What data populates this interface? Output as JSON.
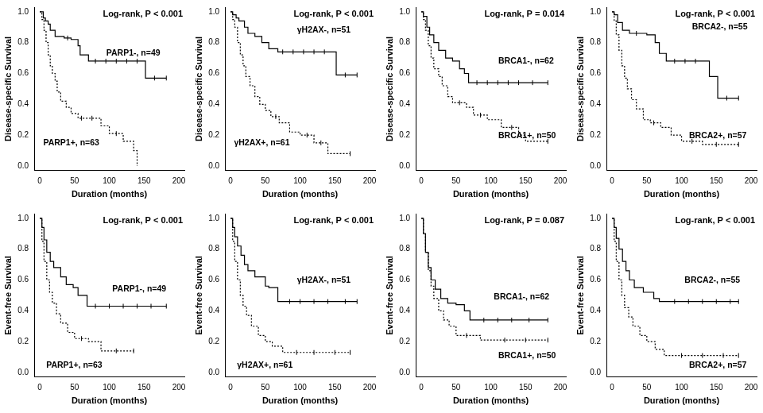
{
  "chart_data": [
    {
      "type": "line",
      "y_label": "Disease-specific Survival",
      "x_label": "Duration (months)",
      "annotations": [
        "Log-rank, P < 0.001"
      ],
      "xlim": [
        -8,
        208
      ],
      "xticks": [
        0,
        50,
        100,
        150,
        200
      ],
      "ylim": [
        -0.03,
        1.03
      ],
      "yticks": [
        {
          "value": 0,
          "label": "0.0"
        },
        0.2,
        0.4,
        0.6,
        0.8,
        {
          "value": 1,
          "label": "1.0"
        }
      ],
      "grid": false,
      "series": [
        {
          "name": "PARP1-, n=49",
          "color": "#000000",
          "line_style": "solid",
          "marker": "tick",
          "x": [
            0,
            3,
            5,
            8,
            12,
            15,
            22,
            35,
            45,
            55,
            58,
            70,
            152,
            182
          ],
          "values": [
            1,
            1,
            0.96,
            0.94,
            0.92,
            0.88,
            0.84,
            0.83,
            0.82,
            0.78,
            0.72,
            0.68,
            0.57,
            0.57
          ],
          "censored": [
            40,
            80,
            95,
            110,
            125,
            140,
            165,
            182
          ]
        },
        {
          "name": "PARP1+, n=63",
          "color": "#000000",
          "line_style": "dotted",
          "marker": "tick",
          "x": [
            0,
            3,
            6,
            9,
            12,
            15,
            18,
            22,
            25,
            30,
            38,
            45,
            55,
            88,
            100,
            120,
            135,
            140
          ],
          "values": [
            1,
            0.95,
            0.88,
            0.8,
            0.72,
            0.65,
            0.6,
            0.55,
            0.48,
            0.42,
            0.38,
            0.34,
            0.31,
            0.26,
            0.21,
            0.16,
            0.1,
            0
          ],
          "censored": [
            60,
            75,
            110
          ]
        }
      ]
    },
    {
      "type": "line",
      "y_label": "Disease-specific Survival",
      "x_label": "Duration (months)",
      "annotations": [
        "Log-rank, P < 0.001"
      ],
      "xlim": [
        -8,
        208
      ],
      "xticks": [
        0,
        50,
        100,
        150,
        200
      ],
      "ylim": [
        -0.03,
        1.03
      ],
      "yticks": [
        {
          "value": 0,
          "label": "0.0"
        },
        0.2,
        0.4,
        0.6,
        0.8,
        {
          "value": 1,
          "label": "1.0"
        }
      ],
      "grid": false,
      "series": [
        {
          "name": "γH2AX-, n=51",
          "color": "#000000",
          "line_style": "solid",
          "marker": "tick",
          "x": [
            0,
            3,
            8,
            12,
            20,
            25,
            35,
            45,
            55,
            68,
            152,
            182
          ],
          "values": [
            1,
            0.98,
            0.96,
            0.94,
            0.9,
            0.86,
            0.84,
            0.8,
            0.76,
            0.74,
            0.59,
            0.59
          ],
          "censored": [
            75,
            90,
            105,
            120,
            135,
            165,
            182
          ]
        },
        {
          "name": "γH2AX+, n=61",
          "color": "#000000",
          "line_style": "dotted",
          "marker": "tick",
          "x": [
            0,
            3,
            6,
            10,
            14,
            18,
            22,
            28,
            35,
            42,
            50,
            58,
            70,
            85,
            100,
            120,
            140,
            172
          ],
          "values": [
            1,
            0.95,
            0.9,
            0.8,
            0.72,
            0.65,
            0.58,
            0.52,
            0.45,
            0.4,
            0.36,
            0.32,
            0.28,
            0.22,
            0.2,
            0.15,
            0.08,
            0.08
          ],
          "censored": [
            65,
            110,
            130,
            172
          ]
        }
      ]
    },
    {
      "type": "line",
      "y_label": "Disease-specific Survival",
      "x_label": "Duration (months)",
      "annotations": [
        "Log-rank, P = 0.014"
      ],
      "xlim": [
        -8,
        208
      ],
      "xticks": [
        0,
        50,
        100,
        150,
        200
      ],
      "ylim": [
        -0.03,
        1.03
      ],
      "yticks": [
        {
          "value": 0,
          "label": "0.0"
        },
        0.2,
        0.4,
        0.6,
        0.8,
        {
          "value": 1,
          "label": "1.0"
        }
      ],
      "grid": false,
      "series": [
        {
          "name": "BRCA1-, n=62",
          "color": "#000000",
          "line_style": "solid",
          "marker": "tick",
          "x": [
            0,
            3,
            8,
            12,
            18,
            25,
            35,
            45,
            55,
            62,
            68,
            182
          ],
          "values": [
            1,
            0.97,
            0.9,
            0.85,
            0.8,
            0.75,
            0.7,
            0.68,
            0.63,
            0.6,
            0.54,
            0.54
          ],
          "censored": [
            80,
            95,
            110,
            125,
            140,
            160,
            182
          ]
        },
        {
          "name": "BRCA1+, n=50",
          "color": "#000000",
          "line_style": "dotted",
          "marker": "tick",
          "x": [
            0,
            3,
            6,
            10,
            14,
            18,
            25,
            30,
            38,
            45,
            65,
            75,
            95,
            115,
            140,
            150,
            182
          ],
          "values": [
            1,
            0.95,
            0.88,
            0.78,
            0.7,
            0.63,
            0.58,
            0.52,
            0.45,
            0.41,
            0.38,
            0.33,
            0.3,
            0.25,
            0.2,
            0.16,
            0.16
          ],
          "censored": [
            55,
            85,
            130,
            182
          ]
        }
      ]
    },
    {
      "type": "line",
      "y_label": "Disease-specific Survival",
      "x_label": "Duration (months)",
      "annotations": [
        "Log-rank, P < 0.001"
      ],
      "xlim": [
        -8,
        208
      ],
      "xticks": [
        0,
        50,
        100,
        150,
        200
      ],
      "ylim": [
        -0.03,
        1.03
      ],
      "yticks": [
        {
          "value": 0,
          "label": "0.0"
        },
        0.2,
        0.4,
        0.6,
        0.8,
        {
          "value": 1,
          "label": "1.0"
        }
      ],
      "grid": false,
      "series": [
        {
          "name": "BRCA2-, n=55",
          "color": "#000000",
          "line_style": "solid",
          "marker": "tick",
          "x": [
            0,
            3,
            8,
            15,
            25,
            50,
            62,
            68,
            78,
            140,
            152,
            182
          ],
          "values": [
            1,
            0.98,
            0.93,
            0.88,
            0.86,
            0.85,
            0.8,
            0.73,
            0.68,
            0.58,
            0.44,
            0.44
          ],
          "censored": [
            35,
            90,
            105,
            120,
            165,
            182
          ]
        },
        {
          "name": "BRCA2+, n=57",
          "color": "#000000",
          "line_style": "dotted",
          "marker": "tick",
          "x": [
            0,
            3,
            6,
            10,
            14,
            18,
            22,
            28,
            35,
            45,
            55,
            70,
            85,
            100,
            130,
            182
          ],
          "values": [
            1,
            0.94,
            0.85,
            0.75,
            0.65,
            0.57,
            0.5,
            0.43,
            0.37,
            0.3,
            0.28,
            0.25,
            0.2,
            0.16,
            0.14,
            0.14
          ],
          "censored": [
            60,
            115,
            150,
            182
          ]
        }
      ]
    },
    {
      "type": "line",
      "y_label": "Event-free Survival",
      "x_label": "Duration (months)",
      "annotations": [
        "Log-rank, P < 0.001"
      ],
      "xlim": [
        -8,
        208
      ],
      "xticks": [
        0,
        50,
        100,
        150,
        200
      ],
      "ylim": [
        -0.03,
        1.03
      ],
      "yticks": [
        {
          "value": 0,
          "label": "0.0"
        },
        0.2,
        0.4,
        0.6,
        0.8,
        {
          "value": 1,
          "label": "1.0"
        }
      ],
      "grid": false,
      "series": [
        {
          "name": "PARP1-, n=49",
          "color": "#000000",
          "line_style": "solid",
          "marker": "tick",
          "x": [
            0,
            3,
            6,
            10,
            15,
            20,
            30,
            38,
            48,
            55,
            68,
            182
          ],
          "values": [
            1,
            0.94,
            0.86,
            0.78,
            0.72,
            0.68,
            0.62,
            0.57,
            0.55,
            0.5,
            0.43,
            0.43
          ],
          "censored": [
            80,
            100,
            120,
            140,
            160,
            182
          ]
        },
        {
          "name": "PARP1+, n=63",
          "color": "#000000",
          "line_style": "dotted",
          "marker": "tick",
          "x": [
            0,
            3,
            6,
            10,
            14,
            18,
            24,
            30,
            40,
            50,
            70,
            88,
            135
          ],
          "values": [
            1,
            0.85,
            0.72,
            0.6,
            0.52,
            0.45,
            0.38,
            0.32,
            0.26,
            0.22,
            0.2,
            0.14,
            0.14
          ],
          "censored": [
            60,
            110,
            135
          ]
        }
      ]
    },
    {
      "type": "line",
      "y_label": "Event-free Survival",
      "x_label": "Duration (months)",
      "annotations": [
        "Log-rank, P < 0.001"
      ],
      "xlim": [
        -8,
        208
      ],
      "xticks": [
        0,
        50,
        100,
        150,
        200
      ],
      "ylim": [
        -0.03,
        1.03
      ],
      "yticks": [
        {
          "value": 0,
          "label": "0.0"
        },
        0.2,
        0.4,
        0.6,
        0.8,
        {
          "value": 1,
          "label": "1.0"
        }
      ],
      "grid": false,
      "series": [
        {
          "name": "γH2AX-, n=51",
          "color": "#000000",
          "line_style": "solid",
          "marker": "tick",
          "x": [
            0,
            3,
            6,
            10,
            15,
            20,
            25,
            35,
            50,
            55,
            68,
            182
          ],
          "values": [
            1,
            0.94,
            0.88,
            0.82,
            0.76,
            0.7,
            0.66,
            0.62,
            0.56,
            0.55,
            0.46,
            0.46
          ],
          "censored": [
            85,
            100,
            120,
            140,
            165,
            182
          ]
        },
        {
          "name": "γH2AX+, n=61",
          "color": "#000000",
          "line_style": "dotted",
          "marker": "tick",
          "x": [
            0,
            3,
            6,
            10,
            14,
            18,
            23,
            30,
            40,
            50,
            60,
            75,
            172
          ],
          "values": [
            1,
            0.85,
            0.72,
            0.6,
            0.5,
            0.43,
            0.37,
            0.3,
            0.24,
            0.2,
            0.17,
            0.13,
            0.13
          ],
          "censored": [
            95,
            120,
            150,
            172
          ]
        }
      ]
    },
    {
      "type": "line",
      "y_label": "Event-free Survival",
      "x_label": "Duration (months)",
      "annotations": [
        "Log-rank, P = 0.087"
      ],
      "xlim": [
        -8,
        208
      ],
      "xticks": [
        0,
        50,
        100,
        150,
        200
      ],
      "ylim": [
        -0.03,
        1.03
      ],
      "yticks": [
        {
          "value": 0,
          "label": "0.0"
        },
        0.2,
        0.4,
        0.6,
        0.8,
        {
          "value": 1,
          "label": "1.0"
        }
      ],
      "grid": false,
      "series": [
        {
          "name": "BRCA1-, n=62",
          "color": "#000000",
          "line_style": "solid",
          "marker": "tick",
          "x": [
            0,
            3,
            6,
            10,
            14,
            20,
            28,
            38,
            50,
            62,
            70,
            182
          ],
          "values": [
            1,
            0.9,
            0.78,
            0.68,
            0.6,
            0.54,
            0.48,
            0.45,
            0.44,
            0.4,
            0.34,
            0.34
          ],
          "censored": [
            90,
            110,
            130,
            155,
            182
          ]
        },
        {
          "name": "BRCA1+, n=50",
          "color": "#000000",
          "line_style": "dotted",
          "marker": "tick",
          "x": [
            0,
            3,
            6,
            10,
            14,
            18,
            25,
            32,
            40,
            50,
            85,
            182
          ],
          "values": [
            1,
            0.9,
            0.78,
            0.66,
            0.56,
            0.48,
            0.4,
            0.34,
            0.3,
            0.24,
            0.21,
            0.21
          ],
          "censored": [
            65,
            120,
            150,
            182
          ]
        }
      ]
    },
    {
      "type": "line",
      "y_label": "Event-free Survival",
      "x_label": "Duration (months)",
      "annotations": [
        "Log-rank, P < 0.001"
      ],
      "xlim": [
        -8,
        208
      ],
      "xticks": [
        0,
        50,
        100,
        150,
        200
      ],
      "ylim": [
        -0.03,
        1.03
      ],
      "yticks": [
        {
          "value": 0,
          "label": "0.0"
        },
        0.2,
        0.4,
        0.6,
        0.8,
        {
          "value": 1,
          "label": "1.0"
        }
      ],
      "grid": false,
      "series": [
        {
          "name": "BRCA2-, n=55",
          "color": "#000000",
          "line_style": "solid",
          "marker": "tick",
          "x": [
            0,
            3,
            6,
            10,
            15,
            20,
            25,
            32,
            45,
            60,
            68,
            182
          ],
          "values": [
            1,
            0.94,
            0.87,
            0.8,
            0.72,
            0.66,
            0.6,
            0.55,
            0.52,
            0.48,
            0.46,
            0.46
          ],
          "censored": [
            90,
            110,
            130,
            150,
            170,
            182
          ]
        },
        {
          "name": "BRCA2+, n=57",
          "color": "#000000",
          "line_style": "dotted",
          "marker": "tick",
          "x": [
            0,
            3,
            6,
            10,
            14,
            18,
            24,
            30,
            40,
            50,
            62,
            75,
            182
          ],
          "values": [
            1,
            0.85,
            0.72,
            0.6,
            0.5,
            0.42,
            0.36,
            0.3,
            0.24,
            0.2,
            0.15,
            0.11,
            0.11
          ],
          "censored": [
            100,
            130,
            160,
            182
          ]
        }
      ]
    }
  ]
}
